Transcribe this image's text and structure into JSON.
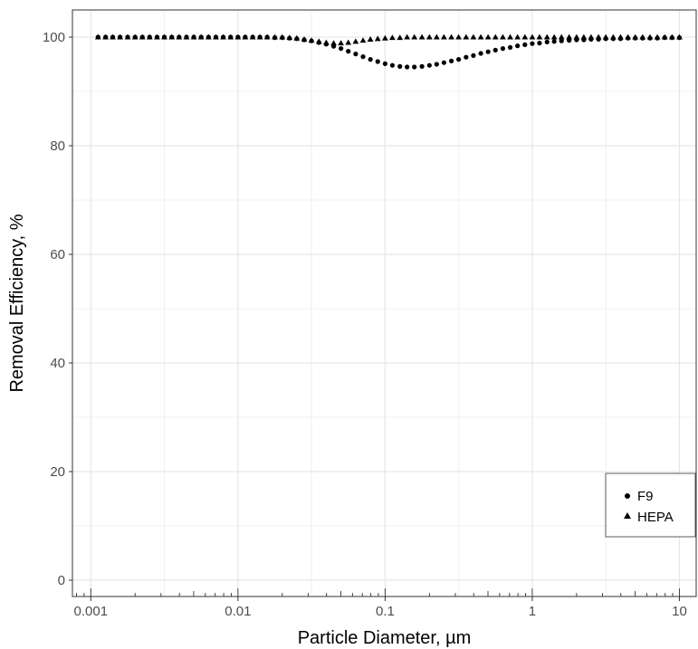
{
  "chart_data": {
    "type": "scatter",
    "xlabel": "Particle Diameter, µm",
    "ylabel": "Removal Efficiency, %",
    "x_scale": "log",
    "xlim": [
      0.00075,
      13
    ],
    "ylim": [
      -3,
      105
    ],
    "x_ticks": [
      {
        "value": 0.001,
        "label": "0.001"
      },
      {
        "value": 0.01,
        "label": "0.01"
      },
      {
        "value": 0.1,
        "label": "0.1"
      },
      {
        "value": 1,
        "label": "1"
      },
      {
        "value": 10,
        "label": "10"
      }
    ],
    "y_ticks": [
      {
        "value": 0,
        "label": "0"
      },
      {
        "value": 20,
        "label": "20"
      },
      {
        "value": 40,
        "label": "40"
      },
      {
        "value": 60,
        "label": "60"
      },
      {
        "value": 80,
        "label": "80"
      },
      {
        "value": 100,
        "label": "100"
      }
    ],
    "grid": true,
    "legend_position": "bottom-right",
    "series": [
      {
        "name": "F9",
        "marker": "circle",
        "color": "#000000",
        "x": [
          0.00112,
          0.00126,
          0.00141,
          0.00158,
          0.00178,
          0.002,
          0.00224,
          0.00251,
          0.00282,
          0.00316,
          0.00355,
          0.00398,
          0.00447,
          0.00501,
          0.00562,
          0.00631,
          0.00708,
          0.00794,
          0.00891,
          0.01,
          0.0112,
          0.0126,
          0.0141,
          0.0158,
          0.0178,
          0.02,
          0.0224,
          0.0251,
          0.0282,
          0.0316,
          0.0355,
          0.0398,
          0.0447,
          0.0501,
          0.0562,
          0.0631,
          0.0708,
          0.0794,
          0.0891,
          0.1,
          0.112,
          0.126,
          0.141,
          0.158,
          0.178,
          0.2,
          0.224,
          0.251,
          0.282,
          0.316,
          0.355,
          0.398,
          0.447,
          0.501,
          0.562,
          0.631,
          0.708,
          0.794,
          0.891,
          1,
          1.12,
          1.26,
          1.41,
          1.58,
          1.78,
          2,
          2.24,
          2.51,
          2.82,
          3.16,
          3.55,
          3.98,
          4.47,
          5.01,
          5.62,
          6.31,
          7.08,
          7.94,
          8.91,
          10
        ],
        "y": [
          100,
          100,
          100,
          100,
          100,
          100,
          100,
          100,
          100,
          100,
          100,
          100,
          100,
          100,
          100,
          100,
          100,
          100,
          100,
          100,
          100,
          100,
          100,
          100,
          99.9,
          99.9,
          99.8,
          99.7,
          99.5,
          99.3,
          99,
          98.7,
          98.3,
          97.9,
          97.4,
          96.9,
          96.4,
          95.9,
          95.5,
          95.1,
          94.8,
          94.6,
          94.5,
          94.5,
          94.6,
          94.8,
          95,
          95.3,
          95.6,
          95.9,
          96.3,
          96.6,
          97,
          97.3,
          97.6,
          97.9,
          98.1,
          98.4,
          98.6,
          98.8,
          98.9,
          99.1,
          99.2,
          99.3,
          99.4,
          99.5,
          99.5,
          99.6,
          99.6,
          99.7,
          99.7,
          99.7,
          99.8,
          99.8,
          99.8,
          99.8,
          99.8,
          99.9,
          99.9,
          99.9
        ]
      },
      {
        "name": "HEPA",
        "marker": "triangle",
        "color": "#000000",
        "x": [
          0.00112,
          0.00126,
          0.00141,
          0.00158,
          0.00178,
          0.002,
          0.00224,
          0.00251,
          0.00282,
          0.00316,
          0.00355,
          0.00398,
          0.00447,
          0.00501,
          0.00562,
          0.00631,
          0.00708,
          0.00794,
          0.00891,
          0.01,
          0.0112,
          0.0126,
          0.0141,
          0.0158,
          0.0178,
          0.02,
          0.0224,
          0.0251,
          0.0282,
          0.0316,
          0.0355,
          0.0398,
          0.0447,
          0.0501,
          0.0562,
          0.0631,
          0.0708,
          0.0794,
          0.0891,
          0.1,
          0.112,
          0.126,
          0.141,
          0.158,
          0.178,
          0.2,
          0.224,
          0.251,
          0.282,
          0.316,
          0.355,
          0.398,
          0.447,
          0.501,
          0.562,
          0.631,
          0.708,
          0.794,
          0.891,
          1,
          1.12,
          1.26,
          1.41,
          1.58,
          1.78,
          2,
          2.24,
          2.51,
          2.82,
          3.16,
          3.55,
          3.98,
          4.47,
          5.01,
          5.62,
          6.31,
          7.08,
          7.94,
          8.91,
          10
        ],
        "y": [
          100,
          100,
          100,
          100,
          100,
          100,
          100,
          100,
          100,
          100,
          100,
          100,
          100,
          100,
          100,
          100,
          100,
          100,
          100,
          100,
          100,
          100,
          100,
          100,
          100,
          100,
          99.9,
          99.8,
          99.6,
          99.4,
          99.2,
          99,
          98.9,
          98.9,
          99,
          99.2,
          99.4,
          99.6,
          99.7,
          99.8,
          99.9,
          99.9,
          100,
          100,
          100,
          100,
          100,
          100,
          100,
          100,
          100,
          100,
          100,
          100,
          100,
          100,
          100,
          100,
          100,
          100,
          100,
          100,
          100,
          100,
          100,
          100,
          100,
          100,
          100,
          100,
          100,
          100,
          100,
          100,
          100,
          100,
          100,
          100,
          100,
          100
        ]
      }
    ]
  }
}
